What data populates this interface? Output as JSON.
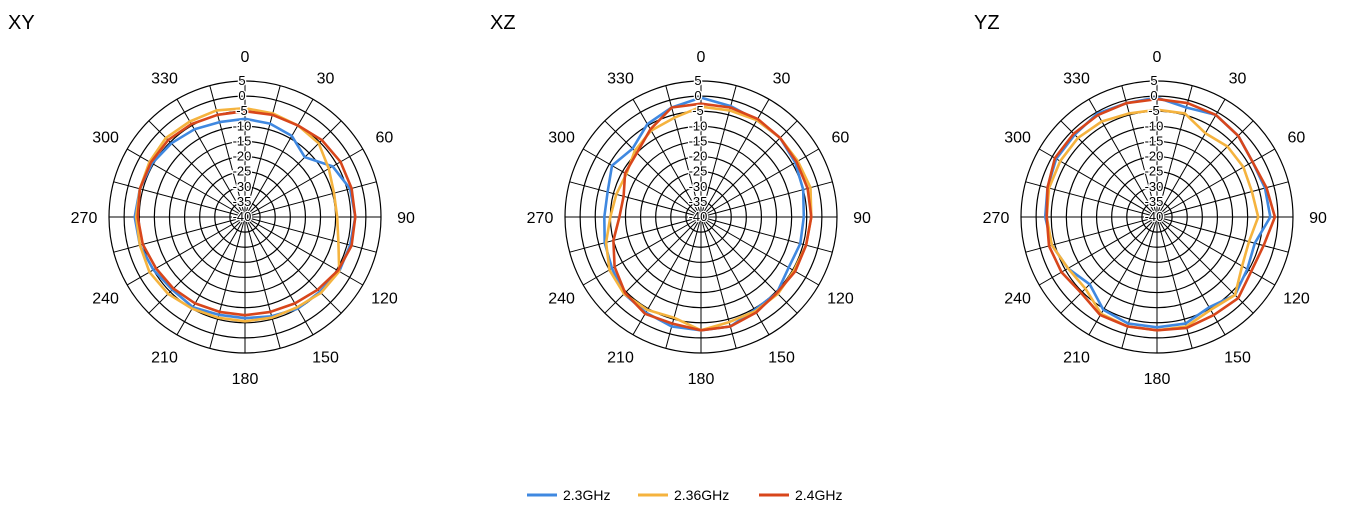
{
  "chart_data": [
    {
      "type": "polar-line",
      "title": "XY",
      "angle_unit": "deg",
      "angle_ticks": [
        0,
        30,
        60,
        90,
        120,
        150,
        180,
        210,
        240,
        270,
        300,
        330
      ],
      "angle_tick_labels": [
        "0",
        "30",
        "60",
        "90",
        "120",
        "150",
        "180",
        "210",
        "240",
        "270",
        "300",
        "330"
      ],
      "radial_range": [
        -40,
        5
      ],
      "radial_ticks": [
        5,
        0,
        -5,
        -10,
        -15,
        -20,
        -25,
        -30,
        -35,
        -40
      ],
      "radial_tick_labels": [
        "5",
        "0",
        "-5",
        "-10",
        "-15",
        "-20",
        "-25",
        "-30",
        "-35",
        "-40"
      ],
      "grid": true,
      "angles": [
        0,
        15,
        30,
        45,
        60,
        75,
        90,
        105,
        120,
        135,
        150,
        165,
        180,
        195,
        210,
        225,
        240,
        255,
        270,
        285,
        300,
        315,
        330,
        345
      ],
      "series": [
        {
          "name": "2.3GHz",
          "values": [
            -7.5,
            -8,
            -9,
            -12,
            -6.5,
            -4,
            -3.5,
            -4,
            -4,
            -5,
            -5,
            -6,
            -6.5,
            -6.5,
            -5.5,
            -6,
            -5,
            -4,
            -3.5,
            -4,
            -4.5,
            -5.5,
            -6.5,
            -7.5
          ]
        },
        {
          "name": "2.36GHz",
          "values": [
            -4,
            -4.5,
            -5,
            -5.5,
            -8,
            -9.5,
            -9.5,
            -8,
            -4,
            -4.5,
            -5.5,
            -5.5,
            -5.5,
            -5.5,
            -5,
            -4,
            -3.5,
            -4,
            -4,
            -4,
            -3.5,
            -3,
            -3.5,
            -3.5
          ]
        },
        {
          "name": "2.4GHz",
          "values": [
            -5,
            -5,
            -5,
            -4,
            -3.5,
            -3.5,
            -3.5,
            -3.5,
            -4.5,
            -6,
            -7,
            -7.5,
            -7.5,
            -7.5,
            -7,
            -6.5,
            -6,
            -5,
            -4.5,
            -4,
            -4,
            -4,
            -4.5,
            -5
          ]
        }
      ]
    },
    {
      "type": "polar-line",
      "title": "XZ",
      "angle_unit": "deg",
      "angle_ticks": [
        0,
        30,
        60,
        90,
        120,
        150,
        180,
        210,
        240,
        270,
        300,
        330
      ],
      "angle_tick_labels": [
        "0",
        "30",
        "60",
        "90",
        "120",
        "150",
        "180",
        "210",
        "240",
        "270",
        "300",
        "330"
      ],
      "radial_range": [
        -40,
        5
      ],
      "radial_ticks": [
        5,
        0,
        -5,
        -10,
        -15,
        -20,
        -25,
        -30,
        -35,
        -40
      ],
      "radial_tick_labels": [
        "5",
        "0",
        "-5",
        "-10",
        "-15",
        "-20",
        "-25",
        "-30",
        "-35",
        "-40"
      ],
      "grid": true,
      "angles": [
        0,
        15,
        30,
        45,
        60,
        75,
        90,
        105,
        120,
        135,
        150,
        165,
        180,
        195,
        210,
        225,
        240,
        255,
        270,
        285,
        300,
        315,
        330,
        345
      ],
      "series": [
        {
          "name": "2.3GHz",
          "values": [
            -0.5,
            -2,
            -3,
            -3,
            -4,
            -5,
            -6,
            -6,
            -6.5,
            -4.5,
            -4.5,
            -2.5,
            -2.5,
            -2.5,
            -3.5,
            -4,
            -6,
            -7,
            -8,
            -8,
            -6,
            -8,
            -4.5,
            -2.5
          ]
        },
        {
          "name": "2.36GHz",
          "values": [
            -3.5,
            -3.5,
            -3,
            -3,
            -3,
            -2.5,
            -3.5,
            -4,
            -4.5,
            -4,
            -4,
            -4,
            -2.5,
            -5.5,
            -4.5,
            -4,
            -5,
            -7.5,
            -10,
            -11,
            -11.5,
            -9,
            -7,
            -6
          ]
        },
        {
          "name": "2.4GHz",
          "values": [
            -2.5,
            -2.5,
            -2.5,
            -3,
            -3.5,
            -3.5,
            -3.5,
            -4,
            -4,
            -4.5,
            -3.5,
            -2.5,
            -2.5,
            -3.5,
            -3,
            -4.5,
            -7,
            -10,
            -13,
            -13.5,
            -11,
            -10,
            -6.5,
            -2.5
          ]
        }
      ]
    },
    {
      "type": "polar-line",
      "title": "YZ",
      "angle_unit": "deg",
      "angle_ticks": [
        0,
        30,
        60,
        90,
        120,
        150,
        180,
        210,
        240,
        270,
        300,
        330
      ],
      "angle_tick_labels": [
        "0",
        "30",
        "60",
        "90",
        "120",
        "150",
        "180",
        "210",
        "240",
        "270",
        "300",
        "330"
      ],
      "radial_range": [
        -40,
        5
      ],
      "radial_ticks": [
        5,
        0,
        -5,
        -10,
        -15,
        -20,
        -25,
        -30,
        -35,
        -40
      ],
      "radial_tick_labels": [
        "5",
        "0",
        "-5",
        "-10",
        "-15",
        "-20",
        "-25",
        "-30",
        "-35",
        "-40"
      ],
      "grid": true,
      "angles": [
        0,
        15,
        30,
        45,
        60,
        75,
        90,
        105,
        120,
        135,
        150,
        165,
        180,
        195,
        210,
        225,
        240,
        255,
        270,
        285,
        300,
        315,
        330,
        345
      ],
      "series": [
        {
          "name": "2.3GHz",
          "values": [
            -0.5,
            -2.5,
            -1,
            -2,
            -3.5,
            -3,
            -2.5,
            -6.5,
            -5.5,
            -3.5,
            -5.5,
            -3.5,
            -3.5,
            -3.5,
            -4.5,
            -8.5,
            -6,
            -4,
            -3,
            -2.5,
            -1.5,
            -1.5,
            -0.5,
            -1
          ]
        },
        {
          "name": "2.36GHz",
          "values": [
            -4.5,
            -4.5,
            -8,
            -7,
            -7,
            -7.5,
            -6.5,
            -8.5,
            -7.5,
            -3.5,
            -4.5,
            -2.5,
            -2.5,
            -2.5,
            -3,
            -6.5,
            -6,
            -4,
            -3.5,
            -3,
            -3,
            -3,
            -3.5,
            -4.5
          ]
        },
        {
          "name": "2.4GHz",
          "values": [
            -1,
            -1,
            -1,
            -2,
            -3.5,
            -2.5,
            -1,
            -3.5,
            -4,
            -2,
            -2.5,
            -2,
            -2.5,
            -2.5,
            -2.5,
            -4.5,
            -3.5,
            -3,
            -3.5,
            -2.5,
            -1,
            -1,
            -1,
            -1
          ]
        }
      ]
    }
  ],
  "legend": [
    {
      "name": "2.3GHz",
      "color": "#3f88e0"
    },
    {
      "name": "2.36GHz",
      "color": "#f5b33e"
    },
    {
      "name": "2.4GHz",
      "color": "#d8461b"
    }
  ],
  "colors": {
    "2.3GHz": "#3f88e0",
    "2.36GHz": "#f5b33e",
    "2.4GHz": "#d8461b",
    "grid": "#000000"
  }
}
